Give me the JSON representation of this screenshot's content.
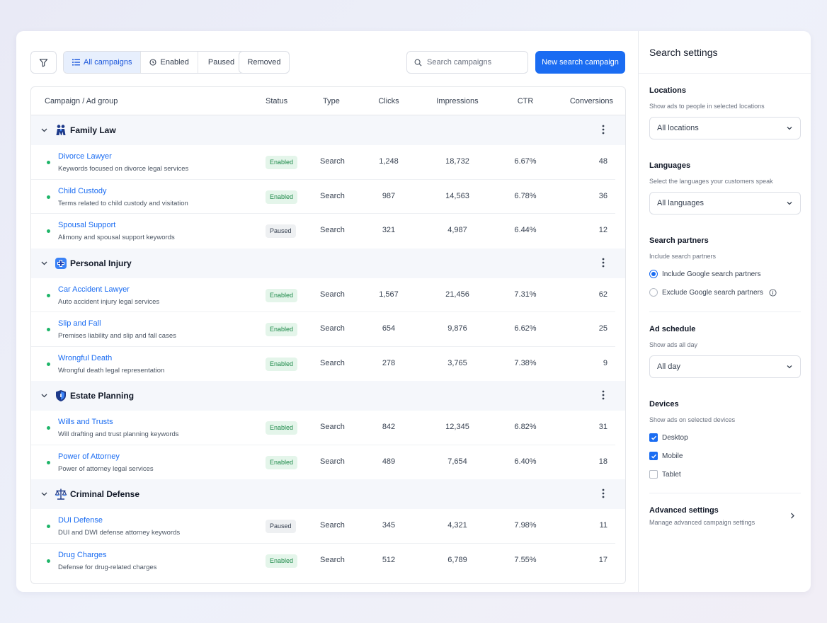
{
  "toolbar": {
    "tabs": [
      {
        "label": "All campaigns",
        "icon": "list-icon",
        "active": true
      },
      {
        "label": "Enabled",
        "icon": "circle-status-icon",
        "active": false
      },
      {
        "label": "Paused",
        "active": false
      }
    ],
    "removed_label": "Removed",
    "search_placeholder": "Search campaigns",
    "new_button": "New search campaign"
  },
  "table": {
    "columns": [
      "Campaign / Ad group",
      "Status",
      "Type",
      "Clicks",
      "Impressions",
      "CTR",
      "Conversions"
    ],
    "groups": [
      {
        "name": "Family Law",
        "icon": "family-icon",
        "rows": [
          {
            "name": "Divorce Lawyer",
            "desc": "Keywords focused on divorce legal services",
            "status": "Enabled",
            "type": "Search",
            "clicks": "1,248",
            "impressions": "18,732",
            "ctr": "6.67%",
            "conversions": "48"
          },
          {
            "name": "Child Custody",
            "desc": "Terms related to child custody and visitation",
            "status": "Enabled",
            "type": "Search",
            "clicks": "987",
            "impressions": "14,563",
            "ctr": "6.78%",
            "conversions": "36"
          },
          {
            "name": "Spousal Support",
            "desc": "Alimony and spousal support keywords",
            "status": "Paused",
            "type": "Search",
            "clicks": "321",
            "impressions": "4,987",
            "ctr": "6.44%",
            "conversions": "12"
          }
        ]
      },
      {
        "name": "Personal Injury",
        "icon": "medical-cross-icon",
        "rows": [
          {
            "name": "Car Accident Lawyer",
            "desc": "Auto accident injury legal services",
            "status": "Enabled",
            "type": "Search",
            "clicks": "1,567",
            "impressions": "21,456",
            "ctr": "7.31%",
            "conversions": "62"
          },
          {
            "name": "Slip and Fall",
            "desc": "Premises liability and slip and fall cases",
            "status": "Enabled",
            "type": "Search",
            "clicks": "654",
            "impressions": "9,876",
            "ctr": "6.62%",
            "conversions": "25"
          },
          {
            "name": "Wrongful Death",
            "desc": "Wrongful death legal representation",
            "status": "Enabled",
            "type": "Search",
            "clicks": "278",
            "impressions": "3,765",
            "ctr": "7.38%",
            "conversions": "9"
          }
        ]
      },
      {
        "name": "Estate Planning",
        "icon": "shield-icon",
        "rows": [
          {
            "name": "Wills and Trusts",
            "desc": "Will drafting and trust planning keywords",
            "status": "Enabled",
            "type": "Search",
            "clicks": "842",
            "impressions": "12,345",
            "ctr": "6.82%",
            "conversions": "31"
          },
          {
            "name": "Power of Attorney",
            "desc": "Power of attorney legal services",
            "status": "Enabled",
            "type": "Search",
            "clicks": "489",
            "impressions": "7,654",
            "ctr": "6.40%",
            "conversions": "18"
          }
        ]
      },
      {
        "name": "Criminal Defense",
        "icon": "scales-icon",
        "rows": [
          {
            "name": "DUI Defense",
            "desc": "DUI and DWI defense attorney keywords",
            "status": "Paused",
            "type": "Search",
            "clicks": "345",
            "impressions": "4,321",
            "ctr": "7.98%",
            "conversions": "11"
          },
          {
            "name": "Drug Charges",
            "desc": "Defense for drug-related charges",
            "status": "Enabled",
            "type": "Search",
            "clicks": "512",
            "impressions": "6,789",
            "ctr": "7.55%",
            "conversions": "17"
          }
        ]
      }
    ]
  },
  "settings": {
    "title": "Search settings",
    "locations": {
      "title": "Locations",
      "sub": "Show ads to people in selected locations",
      "value": "All locations"
    },
    "languages": {
      "title": "Languages",
      "sub": "Select the languages your customers speak",
      "value": "All languages"
    },
    "partners": {
      "title": "Search partners",
      "sub": "Include search partners",
      "include": "Include Google search partners",
      "exclude": "Exclude Google search partners",
      "selected": "include"
    },
    "schedule": {
      "title": "Ad schedule",
      "sub": "Show ads all day",
      "value": "All day"
    },
    "devices": {
      "title": "Devices",
      "sub": "Show ads on selected devices",
      "items": [
        {
          "label": "Desktop",
          "checked": true
        },
        {
          "label": "Mobile",
          "checked": true
        },
        {
          "label": "Tablet",
          "checked": false
        }
      ]
    },
    "advanced": {
      "title": "Advanced settings",
      "sub": "Manage advanced campaign settings"
    }
  },
  "colors": {
    "accent": "#1a6cf2",
    "enabled_bg": "#e4f5ea",
    "enabled_text": "#1e8a4a",
    "dot": "#1fb569"
  }
}
